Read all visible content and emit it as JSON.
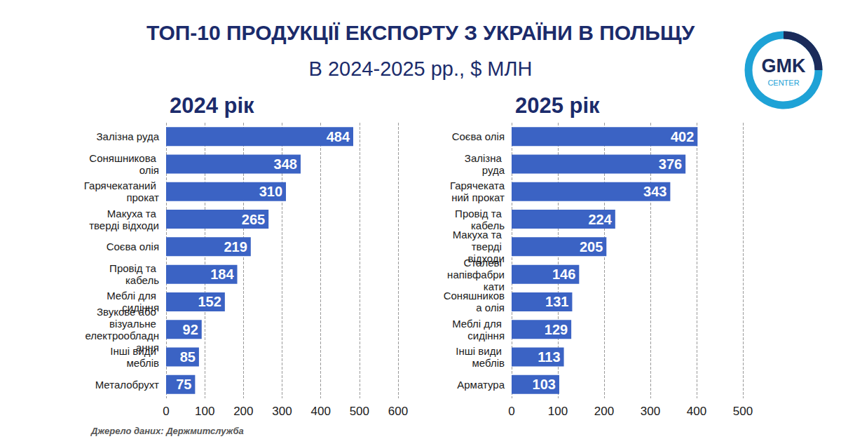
{
  "title": "ТОП-10 ПРОДУКЦІЇ ЕКСПОРТУ З УКРАЇНИ В ПОЛЬЩУ",
  "subtitle": "В 2024-2025 рр., $ МЛН",
  "source": "Джерело даних: Держмитслужба",
  "logo": {
    "text": "GMK",
    "subtext": "CENTER"
  },
  "chart_data": [
    {
      "type": "bar",
      "title": "2024 рік",
      "orientation": "horizontal",
      "categories": [
        "Залізна руда",
        "Соняшникова олія",
        "Гарячекатаний прокат",
        "Макуха та тверді відходи",
        "Соєва олія",
        "Провід та кабель",
        "Меблі для сидіння",
        "Звукове або візуальне електрообладнання",
        "Інші види меблів",
        "Металобрухт"
      ],
      "values": [
        484,
        348,
        310,
        265,
        219,
        184,
        152,
        92,
        85,
        75
      ],
      "color": "#3b63c4",
      "xlim": [
        0,
        600
      ],
      "xticks": [
        0,
        100,
        200,
        300,
        400,
        500,
        600
      ],
      "grid": true,
      "data_labels": true
    },
    {
      "type": "bar",
      "title": "2025 рік",
      "orientation": "horizontal",
      "categories": [
        "Соєва олія",
        "Залізна руда",
        "Гарячекатаний прокат",
        "Провід та кабель",
        "Макуха та тверді відходи",
        "Сталеві напівфабрикати",
        "Соняшникова олія",
        "Меблі для сидіння",
        "Інші види меблів",
        "Арматура"
      ],
      "values": [
        402,
        376,
        343,
        224,
        205,
        146,
        131,
        129,
        113,
        103
      ],
      "color": "#3b63c4",
      "xlim": [
        0,
        500
      ],
      "xticks": [
        0,
        100,
        200,
        300,
        400,
        500
      ],
      "grid": true,
      "data_labels": true
    }
  ]
}
